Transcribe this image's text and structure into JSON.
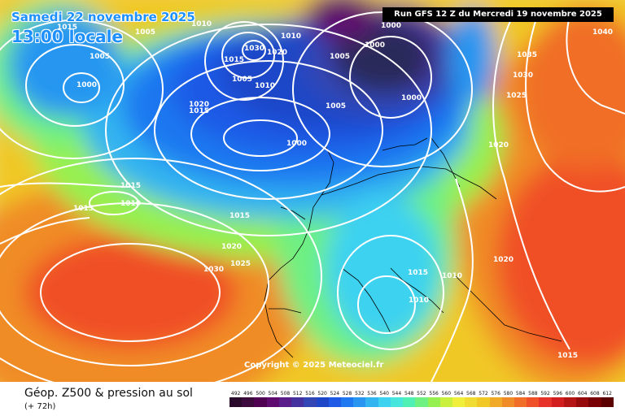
{
  "header": {
    "date": "Samedi 22 novembre 2025",
    "time": "13:00 locale",
    "run": "Run GFS 12 Z du Mercredi 19 novembre 2025"
  },
  "copyright": "Copyright © 2025 Meteociel.fr",
  "footer": {
    "title": "Géop. Z500 & pression au sol",
    "lead_time": "(+ 72h)"
  },
  "scale": {
    "steps": [
      "492",
      "496",
      "500",
      "504",
      "508",
      "512",
      "516",
      "520",
      "524",
      "528",
      "532",
      "536",
      "540",
      "544",
      "548",
      "552",
      "556",
      "560",
      "564",
      "568",
      "572",
      "576",
      "580",
      "584",
      "588",
      "592",
      "596",
      "600",
      "604",
      "608",
      "612"
    ],
    "colors": [
      "#2a0a2a",
      "#3d0a3d",
      "#500050",
      "#5e0a6e",
      "#5a1e8a",
      "#46329e",
      "#3246b4",
      "#1e46c8",
      "#1e5ae6",
      "#1e78f0",
      "#2896f0",
      "#32b4f0",
      "#3cd2f0",
      "#46e6dc",
      "#50f0b4",
      "#6ef082",
      "#96f050",
      "#c8f03c",
      "#f0f03c",
      "#f0dc32",
      "#f0c828",
      "#f0aa28",
      "#f08c28",
      "#f06e28",
      "#f05028",
      "#e63228",
      "#d21e1e",
      "#b41414",
      "#960a0a",
      "#780000",
      "#5a0000"
    ]
  },
  "pressure_labels": [
    {
      "text": "1015"
    },
    {
      "text": "1005"
    },
    {
      "text": "1005"
    },
    {
      "text": "1000"
    },
    {
      "text": "1010"
    },
    {
      "text": "1010"
    },
    {
      "text": "1030"
    },
    {
      "text": "1020"
    },
    {
      "text": "1015"
    },
    {
      "text": "1005"
    },
    {
      "text": "1010"
    },
    {
      "text": "1020"
    },
    {
      "text": "1015"
    },
    {
      "text": "1000"
    },
    {
      "text": "1005"
    },
    {
      "text": "1000"
    },
    {
      "text": "1005"
    },
    {
      "text": "1000"
    },
    {
      "text": "1000"
    },
    {
      "text": "1040"
    },
    {
      "text": "1035"
    },
    {
      "text": "1030"
    },
    {
      "text": "1025"
    },
    {
      "text": "1020"
    },
    {
      "text": "1015"
    },
    {
      "text": "1015"
    },
    {
      "text": "1010"
    },
    {
      "text": "1015"
    },
    {
      "text": "1020"
    },
    {
      "text": "1030"
    },
    {
      "text": "1025"
    },
    {
      "text": "1015"
    },
    {
      "text": "1010"
    },
    {
      "text": "1010"
    },
    {
      "text": "1020"
    },
    {
      "text": "1015"
    }
  ]
}
